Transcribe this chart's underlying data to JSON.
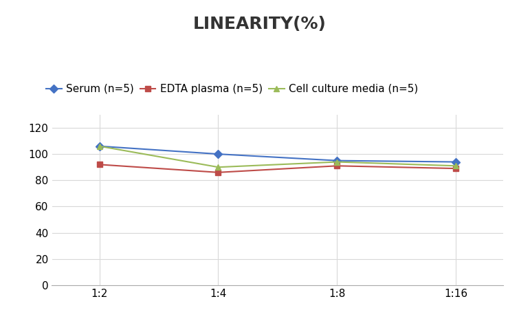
{
  "title": "LINEARITY(%)",
  "x_labels": [
    "1:2",
    "1:4",
    "1:8",
    "1:16"
  ],
  "x_positions": [
    0,
    1,
    2,
    3
  ],
  "series": [
    {
      "label": "Serum (n=5)",
      "values": [
        106,
        100,
        95,
        94
      ],
      "color": "#4472C4",
      "marker": "D",
      "markersize": 6
    },
    {
      "label": "EDTA plasma (n=5)",
      "values": [
        92,
        86,
        91,
        89
      ],
      "color": "#BE4B48",
      "marker": "s",
      "markersize": 6
    },
    {
      "label": "Cell culture media (n=5)",
      "values": [
        106,
        90,
        94,
        91
      ],
      "color": "#9BBB59",
      "marker": "^",
      "markersize": 6
    }
  ],
  "ylim": [
    0,
    130
  ],
  "yticks": [
    0,
    20,
    40,
    60,
    80,
    100,
    120
  ],
  "grid_color": "#D8D8D8",
  "background_color": "#FFFFFF",
  "title_fontsize": 18,
  "legend_fontsize": 11,
  "tick_fontsize": 11
}
